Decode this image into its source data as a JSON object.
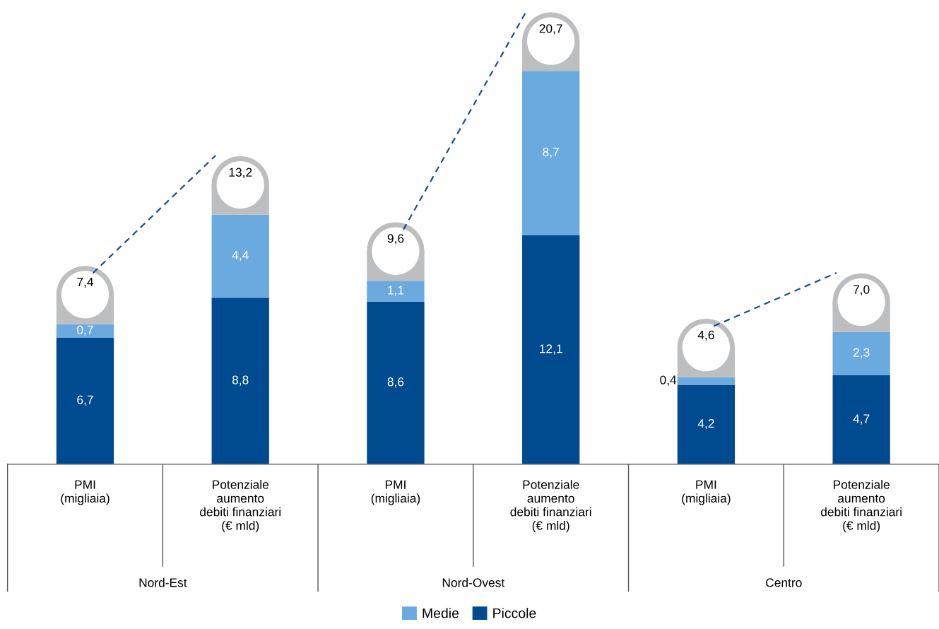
{
  "chart_data": {
    "type": "bar",
    "stacked": true,
    "data_labels": true,
    "legend": "bottom",
    "grid": false,
    "categories": [
      "PMI\n(migliaia)",
      "Potenziale\naumento\ndebiti finanziari\n(€ mld)",
      "PMI\n(migliaia)",
      "Potenziale\naumento\ndebiti finanziari\n(€ mld)",
      "PMI\n(migliaia)",
      "Potenziale\naumento\ndebiti finanziari\n(€ mld)"
    ],
    "series": [
      {
        "name": "Piccole",
        "color": "#004a8f",
        "values": [
          6.7,
          8.8,
          8.6,
          12.1,
          4.2,
          4.7
        ],
        "value_labels": [
          "6,7",
          "8,8",
          "8,6",
          "12,1",
          "4,2",
          "4,7"
        ]
      },
      {
        "name": "Medie",
        "color": "#6aaade",
        "values": [
          0.7,
          4.4,
          1.1,
          8.7,
          0.4,
          2.3
        ],
        "value_labels": [
          "0,7",
          "4,4",
          "1,1",
          "8,7",
          "0,4",
          "2,3"
        ]
      }
    ],
    "totals": [
      "7,4",
      "13,2",
      "9,6",
      "20,7",
      "4,6",
      "7,0"
    ],
    "annotations": [
      "Nord-Est",
      "Nord-Ovest",
      "Centro"
    ]
  }
}
